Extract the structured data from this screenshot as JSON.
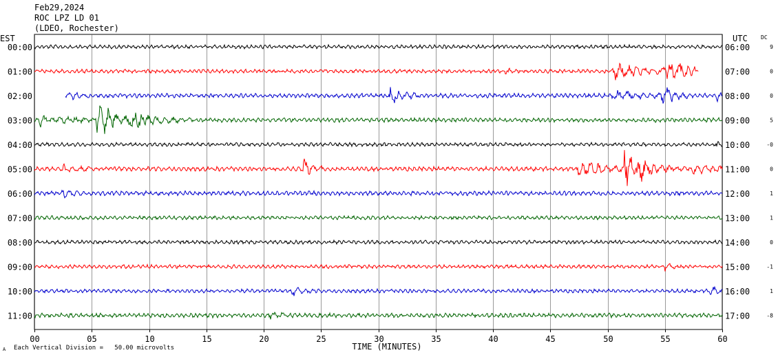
{
  "header": {
    "date": "Feb29,2024",
    "station": "ROC LPZ LD 01",
    "network": "(LDEO, Rochester)"
  },
  "left_axis_label": "EST",
  "right_axis_label": "UTC",
  "dc_label": "DC",
  "x_axis_title": "TIME (MINUTES)",
  "footer_note": "Each Vertical Division =   50.00 microvolts",
  "footer_mark": "A",
  "colors": {
    "black": "#000000",
    "red": "#ff0000",
    "blue": "#0000cd",
    "green": "#006400",
    "grid": "#000000"
  },
  "chart_data": {
    "type": "line",
    "x_range": [
      0,
      60
    ],
    "x_ticks": [
      "00",
      "05",
      "10",
      "15",
      "20",
      "25",
      "30",
      "35",
      "40",
      "45",
      "50",
      "55",
      "60"
    ],
    "grid": true,
    "rows": [
      {
        "est": "00:00",
        "utc": "06:00",
        "dc": "9",
        "color": "black",
        "noise": 3,
        "start": 0,
        "end": 60,
        "events": []
      },
      {
        "est": "01:00",
        "utc": "07:00",
        "dc": "0",
        "color": "red",
        "noise": 3,
        "start": 0,
        "end": 57.9,
        "events": [
          {
            "t": 41.2,
            "amp": 6,
            "dur": 0.5
          },
          {
            "t": 50.5,
            "amp": 12,
            "dur": 4
          },
          {
            "t": 55,
            "amp": 16,
            "dur": 3
          }
        ]
      },
      {
        "est": "02:00",
        "utc": "08:00",
        "dc": "0",
        "color": "blue",
        "noise": 3.5,
        "start": 2.7,
        "end": 60,
        "events": [
          {
            "t": 3,
            "amp": 7,
            "dur": 1
          },
          {
            "t": 31,
            "amp": 13,
            "dur": 1.5
          },
          {
            "t": 50.5,
            "amp": 8,
            "dur": 2.5
          },
          {
            "t": 54.6,
            "amp": 20,
            "dur": 1.5
          },
          {
            "t": 59.5,
            "amp": 8,
            "dur": 0.5
          }
        ]
      },
      {
        "est": "03:00",
        "utc": "09:00",
        "dc": "5",
        "color": "green",
        "noise": 3.5,
        "start": 0,
        "end": 60,
        "events": [
          {
            "t": 0.5,
            "amp": 8,
            "dur": 3
          },
          {
            "t": 5.5,
            "amp": 28,
            "dur": 2.5
          },
          {
            "t": 8.5,
            "amp": 9,
            "dur": 3
          }
        ]
      },
      {
        "est": "04:00",
        "utc": "10:00",
        "dc": "-0",
        "color": "black",
        "noise": 3,
        "start": 0,
        "end": 60,
        "events": [
          {
            "t": 59.5,
            "amp": 6,
            "dur": 0.5
          }
        ]
      },
      {
        "est": "05:00",
        "utc": "11:00",
        "dc": "0",
        "color": "red",
        "noise": 3.5,
        "start": 0,
        "end": 60,
        "events": [
          {
            "t": 2.5,
            "amp": 7,
            "dur": 1.5
          },
          {
            "t": 23.5,
            "amp": 14,
            "dur": 1
          },
          {
            "t": 47.5,
            "amp": 11,
            "dur": 3.5
          },
          {
            "t": 51.5,
            "amp": 34,
            "dur": 1
          },
          {
            "t": 52.6,
            "amp": 18,
            "dur": 2.4
          },
          {
            "t": 57.5,
            "amp": 6,
            "dur": 2.5
          }
        ]
      },
      {
        "est": "06:00",
        "utc": "12:00",
        "dc": "1",
        "color": "blue",
        "noise": 3.5,
        "start": 0,
        "end": 60,
        "events": [
          {
            "t": 2.5,
            "amp": 6,
            "dur": 1
          }
        ]
      },
      {
        "est": "07:00",
        "utc": "13:00",
        "dc": "1",
        "color": "green",
        "noise": 3,
        "start": 0,
        "end": 60,
        "events": []
      },
      {
        "est": "08:00",
        "utc": "14:00",
        "dc": "0",
        "color": "black",
        "noise": 3,
        "start": 0,
        "end": 60,
        "events": []
      },
      {
        "est": "09:00",
        "utc": "15:00",
        "dc": "-1",
        "color": "red",
        "noise": 3,
        "start": 0,
        "end": 60,
        "events": [
          {
            "t": 55,
            "amp": 6,
            "dur": 0.5
          }
        ]
      },
      {
        "est": "10:00",
        "utc": "16:00",
        "dc": "1",
        "color": "blue",
        "noise": 3,
        "start": 0,
        "end": 60,
        "events": [
          {
            "t": 22.5,
            "amp": 6,
            "dur": 1
          },
          {
            "t": 59,
            "amp": 6,
            "dur": 1
          }
        ]
      },
      {
        "est": "11:00",
        "utc": "17:00",
        "dc": "-8",
        "color": "green",
        "noise": 3.5,
        "start": 0,
        "end": 60,
        "events": [
          {
            "t": 20.5,
            "amp": 6,
            "dur": 1
          }
        ]
      }
    ]
  }
}
